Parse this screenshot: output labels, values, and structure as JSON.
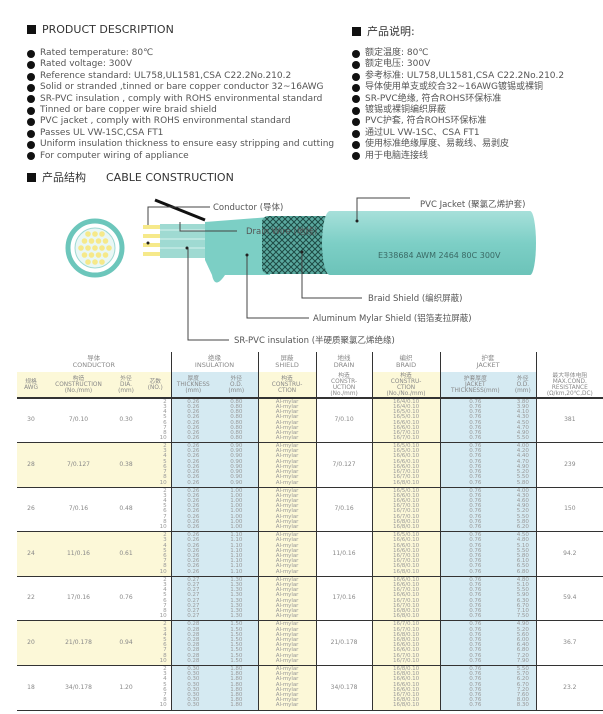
{
  "desc_en": {
    "title": "PRODUCT DESCRIPTION",
    "items": [
      "Rated temperature: 80℃",
      "Rated voltage: 300V",
      "Reference standard: UL758,UL1581,CSA C22.2No.210.2",
      "Solid or stranded ,tinned or bare copper conductor 32~16AWG",
      "SR-PVC insulation , comply with ROHS environmental standard",
      "Tinned or bare copper wire braid shield",
      "PVC jacket , comply with ROHS environmental standard",
      "Passes UL VW-1SC,CSA FT1",
      "Uniform insulation thickness to ensure easy stripping and cutting",
      "For computer wiring of appliance"
    ]
  },
  "desc_cn": {
    "title": "产品说明:",
    "items": [
      "额定温度: 80℃",
      "额定电压: 300V",
      "参考标准: UL758,UL1581,CSA C22.2No.210.2",
      "导体使用单支或绞合32~16AWG镀锡或裸铜",
      "SR-PVC绝缘, 符合ROHS环保标准",
      "镀锡或裸铜编织屏蔽",
      "PVC护套, 符合ROHS环保标准",
      "通过UL VW-1SC、CSA FT1",
      "使用标准绝缘厚度、易裁线、易剥皮",
      "用于电脑连接线"
    ]
  },
  "construction": {
    "title_cn": "产品结构",
    "title_en": "CABLE CONSTRUCTION",
    "labels": {
      "conductor": "Conductor (导体)",
      "drain": "Drain Wire (地线)",
      "jacket": "PVC Jacket (聚氯乙烯护套)",
      "braid": "Braid Shield (编织屏蔽)",
      "mylar": "Aluminum Mylar Shield (铝箔麦拉屏蔽)",
      "insulation": "SR-PVC insulation (半硬质聚氯乙烯绝缘)"
    },
    "print": "E338684  AWM 2464 80C 300V",
    "ul_mark": "UL",
    "colors": {
      "jacket": "#86d3cb",
      "conductor": "#f6e98a"
    }
  },
  "table": {
    "groups": [
      "导体\nCONDUCTOR",
      "绝缘\nINSULATION",
      "屏蔽\nSHIELD",
      "地线\nDRAIN",
      "编织\nBRAID",
      "护套\nJACKET",
      ""
    ],
    "headers": [
      "规格\nAWG",
      "构造\nCONSTRUCTION\n(No./mm)",
      "外径\nDIA.\n(mm)",
      "芯数\n(NO.)",
      "厚度\nTHICKNESS\n(mm)",
      "外径\nO.D.\n(mm)",
      "构造\nCONSTRU-\nCTION",
      "构造\nCONSTR-\nUCTION\n(No./mm)",
      "构造\nCONSTRU-\nCTION\n(No./No./mm)",
      "护套厚度\nJACKET\nTHICKNESS(mm)",
      "外径\nO.D.\n(mm)",
      "最大导体电阻\nMAX.COND.\nRESISTANCE\n(Ω/km,20℃,DC)"
    ],
    "cores": [
      "2",
      "3",
      "4",
      "5",
      "6",
      "7",
      "8",
      "10"
    ],
    "shield": "Al-mylar",
    "jacket_thickness": "0.76",
    "rows": [
      {
        "awg": "30",
        "construction": "7/0.10",
        "dia": "0.30",
        "ins_t": "0.26",
        "ins_od": "0.80",
        "drain": "7/0.10",
        "braid": [
          "16/4/0.10",
          "16/4/0.10",
          "16/5/0.10",
          "16/5/0.10",
          "16/6/0.10",
          "16/6/0.10",
          "16/7/0.10",
          "16/7/0.10"
        ],
        "od": [
          "3.80",
          "3.90",
          "4.10",
          "4.30",
          "4.50",
          "4.70",
          "4.90",
          "5.50"
        ],
        "res": "381"
      },
      {
        "awg": "28",
        "construction": "7/0.127",
        "dia": "0.38",
        "ins_t": "0.26",
        "ins_od": "0.90",
        "drain": "7/0.127",
        "braid": [
          "16/5/0.10",
          "16/5/0.10",
          "16/6/0.10",
          "16/6/0.10",
          "16/6/0.10",
          "16/7/0.10",
          "16/7/0.10",
          "16/8/0.10"
        ],
        "od": [
          "4.00",
          "4.20",
          "4.40",
          "4.70",
          "4.90",
          "5.20",
          "5.50",
          "5.80"
        ],
        "res": "239"
      },
      {
        "awg": "26",
        "construction": "7/0.16",
        "dia": "0.48",
        "ins_t": "0.26",
        "ins_od": "1.00",
        "drain": "7/0.16",
        "braid": [
          "16/5/0.10",
          "16/6/0.10",
          "16/6/0.10",
          "16/7/0.10",
          "16/7/0.10",
          "16/7/0.10",
          "16/8/0.10",
          "16/8/0.10"
        ],
        "od": [
          "4.00",
          "4.30",
          "4.60",
          "4.90",
          "5.20",
          "5.50",
          "5.80",
          "6.20"
        ],
        "res": "150"
      },
      {
        "awg": "24",
        "construction": "11/0.16",
        "dia": "0.61",
        "ins_t": "0.26",
        "ins_od": "1.10",
        "drain": "11/0.16",
        "braid": [
          "16/5/0.10",
          "16/6/0.10",
          "16/6/0.10",
          "16/6/0.10",
          "16/7/0.10",
          "16/7/0.10",
          "16/8/0.10",
          "16/8/0.10"
        ],
        "od": [
          "4.50",
          "4.80",
          "5.10",
          "5.50",
          "5.80",
          "6.10",
          "6.50",
          "6.80"
        ],
        "res": "94.2"
      },
      {
        "awg": "22",
        "construction": "17/0.16",
        "dia": "0.76",
        "ins_t": "0.27",
        "ins_od": "1.30",
        "drain": "17/0.16",
        "braid": [
          "16/6/0.10",
          "16/6/0.10",
          "16/7/0.10",
          "16/6/0.10",
          "16/7/0.10",
          "16/7/0.10",
          "16/8/0.10",
          "16/8/0.10"
        ],
        "od": [
          "4.80",
          "5.10",
          "5.50",
          "5.90",
          "6.30",
          "6.70",
          "7.10",
          "7.50"
        ],
        "res": "59.4"
      },
      {
        "awg": "20",
        "construction": "21/0.178",
        "dia": "0.94",
        "ins_t": "0.28",
        "ins_od": "1.50",
        "drain": "21/0.178",
        "braid": [
          "16/7/0.10",
          "16/7/0.10",
          "16/8/0.10",
          "16/8/0.10",
          "16/6/0.10",
          "16/6/0.10",
          "16/7/0.10",
          "16/7/0.10"
        ],
        "od": [
          "4.90",
          "5.20",
          "5.60",
          "6.00",
          "6.40",
          "6.80",
          "7.20",
          "7.90"
        ],
        "res": "36.7"
      },
      {
        "awg": "18",
        "construction": "34/0.178",
        "dia": "1.20",
        "ins_t": "0.30",
        "ins_od": "1.80",
        "drain": "34/0.178",
        "braid": [
          "16/8/0.10",
          "16/8/0.10",
          "16/6/0.10",
          "16/6/0.10",
          "16/6/0.10",
          "16/7/0.10",
          "16/8/0.10",
          "16/8/0.10"
        ],
        "od": [
          "5.50",
          "5.70",
          "6.20",
          "6.70",
          "7.20",
          "7.60",
          "8.00",
          "8.30"
        ],
        "res": "23.2"
      }
    ]
  }
}
